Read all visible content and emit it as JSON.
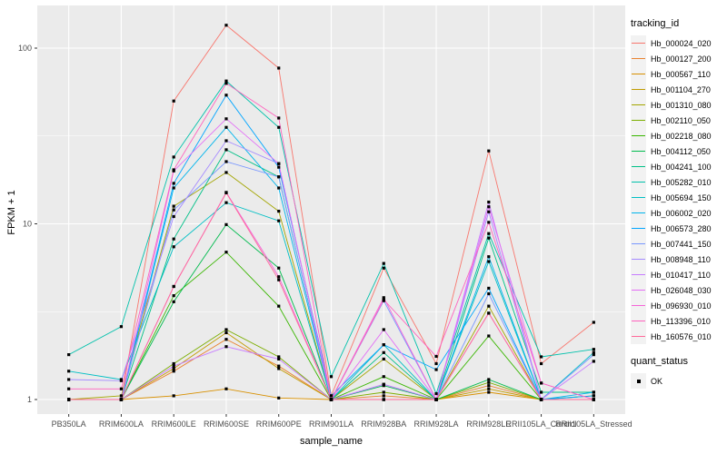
{
  "ui": {
    "panel_bg": "#EBEBEB",
    "grid_color": "#FFFFFF",
    "tick_color": "#333333",
    "tick_label_color": "#4D4D4D",
    "point_color": "#000000",
    "legend_key_bg": "#F2F2F2"
  },
  "chart_data": {
    "type": "line",
    "title": "",
    "xlabel": "sample_name",
    "ylabel": "FPKM + 1",
    "y_scale": "log10",
    "y_ticks": [
      1,
      10,
      100
    ],
    "ylim": [
      0.93,
      170
    ],
    "grid": "on",
    "legend_position": "right",
    "point_shape": "square",
    "categories": [
      "PB350LA",
      "RRIM600LA",
      "RRIM600LE",
      "RRIM600SE",
      "RRIM600PE",
      "RRIM901LA",
      "RRIM928BA",
      "RRIM928LA",
      "RRIM928LE",
      "RRII105LA_Control",
      "RRII105LA_Stressed"
    ],
    "series": [
      {
        "name": "Hb_000024_020",
        "color": "#F8766D",
        "values": [
          1.0,
          1.0,
          50,
          135,
          77,
          1.05,
          5.6,
          1.6,
          26,
          1.6,
          2.75
        ]
      },
      {
        "name": "Hb_000127_200",
        "color": "#EA8331",
        "values": [
          1.0,
          1.0,
          1.45,
          2.2,
          1.55,
          1.0,
          1.05,
          1.0,
          1.2,
          1.0,
          1.0
        ]
      },
      {
        "name": "Hb_000567_110",
        "color": "#D89000",
        "values": [
          1.0,
          1.0,
          1.05,
          1.15,
          1.02,
          1.0,
          1.0,
          1.0,
          1.1,
          1.0,
          1.0
        ]
      },
      {
        "name": "Hb_001104_270",
        "color": "#C09B00",
        "values": [
          1.0,
          1.0,
          1.5,
          2.4,
          1.5,
          1.0,
          1.0,
          1.0,
          1.15,
          1.0,
          1.0
        ]
      },
      {
        "name": "Hb_001310_080",
        "color": "#A3A500",
        "values": [
          1.0,
          1.05,
          12.6,
          19.6,
          11.8,
          1.0,
          1.7,
          1.0,
          3.4,
          1.0,
          1.0
        ]
      },
      {
        "name": "Hb_002110_050",
        "color": "#7CAE00",
        "values": [
          1.0,
          1.0,
          1.6,
          2.5,
          1.75,
          1.0,
          1.1,
          1.0,
          1.25,
          1.0,
          1.05
        ]
      },
      {
        "name": "Hb_002218_080",
        "color": "#39B600",
        "values": [
          1.0,
          1.0,
          3.9,
          6.9,
          3.4,
          1.0,
          1.35,
          1.0,
          2.3,
          1.0,
          1.0
        ]
      },
      {
        "name": "Hb_004112_050",
        "color": "#00BB4E",
        "values": [
          1.0,
          1.0,
          3.6,
          9.9,
          5.6,
          1.0,
          1.2,
          1.0,
          1.3,
          1.0,
          1.0
        ]
      },
      {
        "name": "Hb_004241_100",
        "color": "#00C087",
        "values": [
          1.0,
          1.0,
          8.2,
          26.4,
          18.5,
          1.0,
          1.85,
          1.0,
          8.3,
          1.1,
          1.1
        ]
      },
      {
        "name": "Hb_005282_010",
        "color": "#00C1AB",
        "values": [
          1.8,
          2.6,
          24,
          65,
          35.4,
          1.35,
          5.95,
          1.08,
          8.8,
          1.75,
          1.93
        ]
      },
      {
        "name": "Hb_005694_150",
        "color": "#00BFC4",
        "values": [
          1.45,
          1.3,
          7.4,
          13.2,
          10.4,
          1.0,
          2.05,
          1.0,
          6.1,
          1.0,
          1.85
        ]
      },
      {
        "name": "Hb_006002_020",
        "color": "#00B5EC",
        "values": [
          1.0,
          1.0,
          16,
          35.4,
          16,
          1.0,
          1.0,
          1.0,
          6.5,
          1.0,
          1.1
        ]
      },
      {
        "name": "Hb_006573_280",
        "color": "#00A5FF",
        "values": [
          1.0,
          1.0,
          17,
          54,
          21,
          1.05,
          2.05,
          1.48,
          4.3,
          1.0,
          1.05
        ]
      },
      {
        "name": "Hb_007441_150",
        "color": "#7997FF",
        "values": [
          1.0,
          1.0,
          12,
          22.6,
          18.5,
          1.0,
          3.65,
          1.0,
          4.0,
          1.0,
          1.8
        ]
      },
      {
        "name": "Hb_008948_110",
        "color": "#A58AFF",
        "values": [
          1.3,
          1.28,
          11,
          29.7,
          22,
          1.0,
          1.22,
          1.0,
          11.7,
          1.0,
          1.0
        ]
      },
      {
        "name": "Hb_010417_110",
        "color": "#C77CFF",
        "values": [
          1.0,
          1.0,
          1.55,
          2.0,
          1.7,
          1.0,
          1.22,
          1.0,
          13.3,
          1.0,
          1.65
        ]
      },
      {
        "name": "Hb_026048_030",
        "color": "#E36EF6",
        "values": [
          1.0,
          1.0,
          20,
          39.6,
          22,
          1.0,
          2.5,
          1.0,
          12.5,
          1.24,
          1.0
        ]
      },
      {
        "name": "Hb_096930_010",
        "color": "#F564D8",
        "values": [
          1.0,
          1.0,
          4.4,
          15.1,
          5.0,
          1.0,
          3.8,
          1.0,
          3.1,
          1.0,
          1.0
        ]
      },
      {
        "name": "Hb_113396_010",
        "color": "#FF62BE",
        "values": [
          1.15,
          1.15,
          20.3,
          63,
          40,
          1.0,
          3.7,
          1.76,
          10.2,
          1.24,
          1.0
        ]
      },
      {
        "name": "Hb_160576_010",
        "color": "#FF6A9A",
        "values": [
          1.0,
          1.0,
          4.4,
          15,
          4.8,
          1.0,
          1.0,
          1.0,
          3.1,
          1.0,
          1.0
        ]
      }
    ],
    "legend": {
      "color_title": "tracking_id",
      "shape_title": "quant_status",
      "shape_items": [
        "OK"
      ]
    }
  }
}
